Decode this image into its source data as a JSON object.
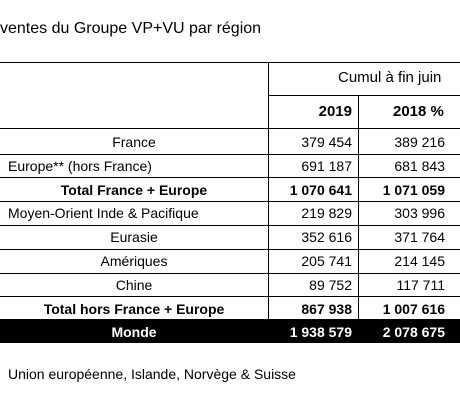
{
  "title": "ventes du Groupe VP+VU par région",
  "header": {
    "cumul": "Cumul à fin juin",
    "years": [
      "2019",
      "2018 %"
    ]
  },
  "rows": [
    [
      "France",
      "379 454",
      "389 216"
    ],
    [
      "Europe** (hors France)",
      "691 187",
      "681 843"
    ],
    [
      "Total France + Europe",
      "1 070 641",
      "1 071 059"
    ],
    [
      "Moyen-Orient Inde & Pacifique",
      "219 829",
      "303 996"
    ],
    [
      "Eurasie",
      "352 616",
      "371 764"
    ],
    [
      "Amériques",
      "205 741",
      "214 145"
    ],
    [
      "Chine",
      "89 752",
      "117 711"
    ],
    [
      "Total hors France + Europe",
      "867 938",
      "1 007 616"
    ],
    [
      "Monde",
      "1 938 579",
      "2 078 675"
    ]
  ],
  "footnote": "Union européenne, Islande, Norvège & Suisse"
}
